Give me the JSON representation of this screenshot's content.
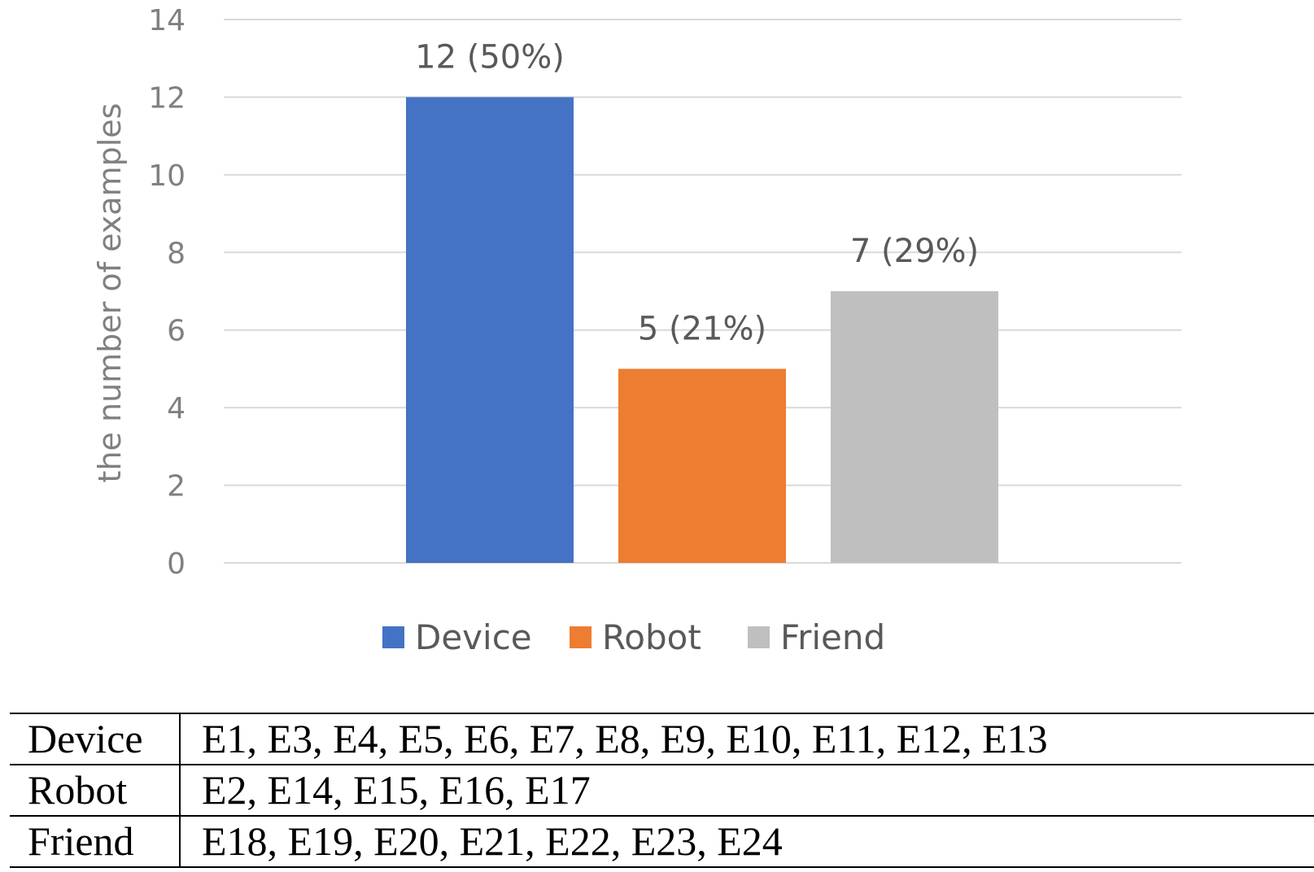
{
  "chart_data": {
    "type": "bar",
    "title": "",
    "xlabel": "",
    "ylabel": "the number of examples",
    "ylim": [
      0,
      14
    ],
    "yticks": [
      0,
      2,
      4,
      6,
      8,
      10,
      12,
      14
    ],
    "grid": true,
    "legend_position": "bottom",
    "series": [
      {
        "name": "Device",
        "value": 12,
        "label": "12 (50%)",
        "color": "#4472C4"
      },
      {
        "name": "Robot",
        "value": 5,
        "label": "5 (21%)",
        "color": "#ED7D31"
      },
      {
        "name": "Friend",
        "value": 7,
        "label": "7 (29%)",
        "color": "#BFBFBF"
      }
    ]
  },
  "table": {
    "rows": [
      {
        "category": "Device",
        "examples": "E1, E3, E4, E5, E6, E7, E8, E9, E10, E11, E12, E13"
      },
      {
        "category": "Robot",
        "examples": "E2, E14, E15, E16, E17"
      },
      {
        "category": "Friend",
        "examples": "E18, E19, E20, E21, E22, E23, E24"
      }
    ]
  }
}
